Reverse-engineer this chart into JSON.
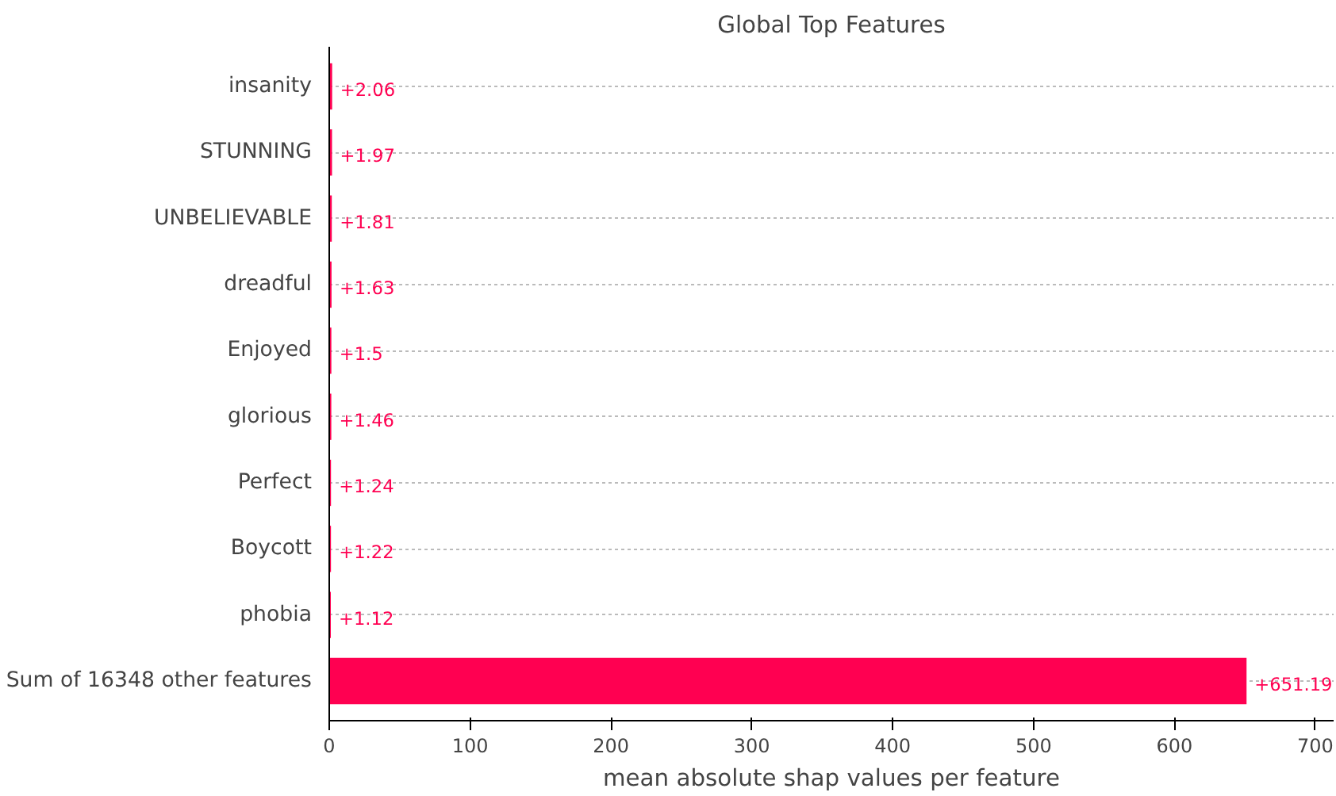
{
  "chart_data": {
    "type": "bar",
    "orientation": "horizontal",
    "title": "Global Top Features",
    "xlabel": "mean absolute shap values per feature",
    "categories": [
      "insanity",
      "STUNNING",
      "UNBELIEVABLE",
      "dreadful",
      "Enjoyed",
      "glorious",
      "Perfect",
      "Boycott",
      "phobia",
      "Sum of 16348 other features"
    ],
    "values": [
      2.06,
      1.97,
      1.81,
      1.63,
      1.5,
      1.46,
      1.24,
      1.22,
      1.12,
      651.19
    ],
    "value_labels": [
      "+2.06",
      "+1.97",
      "+1.81",
      "+1.63",
      "+1.5",
      "+1.46",
      "+1.24",
      "+1.22",
      "+1.12",
      "+651.19"
    ],
    "color": "#ff0051",
    "xlim": [
      0,
      713
    ],
    "xticks": [
      0,
      100,
      200,
      300,
      400,
      500,
      600,
      700
    ],
    "grid": "y"
  }
}
